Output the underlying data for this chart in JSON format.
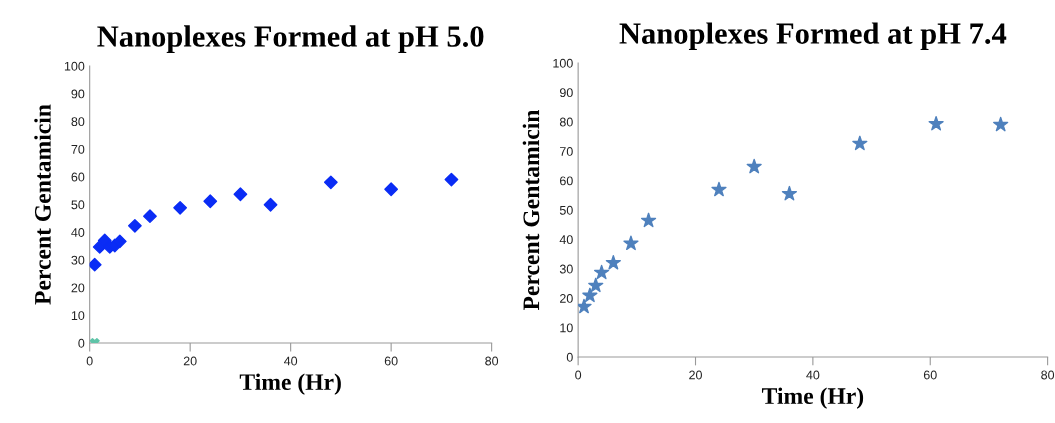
{
  "chart_data": [
    {
      "type": "scatter",
      "title": "Nanoplexes Formed at pH 5.0",
      "xlabel": "Time (Hr)",
      "ylabel": "Percent Gentamicin",
      "xlim": [
        0,
        80
      ],
      "ylim": [
        0,
        100
      ],
      "xticks": [
        0,
        20,
        40,
        60,
        80
      ],
      "yticks": [
        0,
        10,
        20,
        30,
        40,
        50,
        60,
        70,
        80,
        90,
        100
      ],
      "grid": false,
      "legend": false,
      "series": [
        {
          "color": "#0a2cf5",
          "marker": "diamond",
          "x": [
            1,
            2,
            3,
            4,
            5,
            6,
            9,
            12,
            18,
            24,
            30,
            36,
            48,
            60,
            72
          ],
          "values": [
            28.3,
            34.7,
            37,
            34.7,
            35.2,
            36.7,
            42.3,
            45.8,
            48.8,
            51.2,
            53.7,
            49.9,
            58,
            55.5,
            59
          ]
        },
        {
          "color": "#5fc4a8",
          "marker": "cross",
          "x": [
            1
          ],
          "values": [
            0
          ]
        }
      ]
    },
    {
      "type": "scatter",
      "title": "Nanoplexes Formed at pH 7.4",
      "xlabel": "Time (Hr)",
      "ylabel": "Percent Gentamicin",
      "xlim": [
        0,
        80
      ],
      "ylim": [
        0,
        100
      ],
      "xticks": [
        0,
        20,
        40,
        60,
        80
      ],
      "yticks": [
        0,
        10,
        20,
        30,
        40,
        50,
        60,
        70,
        80,
        90,
        100
      ],
      "grid": false,
      "legend": false,
      "series": [
        {
          "color": "#4f81bd",
          "marker": "star",
          "x": [
            1,
            2,
            3,
            4,
            6,
            9,
            12,
            24,
            30,
            36,
            48,
            61,
            72
          ],
          "values": [
            17.1,
            20.9,
            24.3,
            28.7,
            32,
            38.6,
            46.4,
            56.9,
            64.7,
            55.5,
            72.6,
            79.3,
            79
          ]
        }
      ]
    }
  ]
}
